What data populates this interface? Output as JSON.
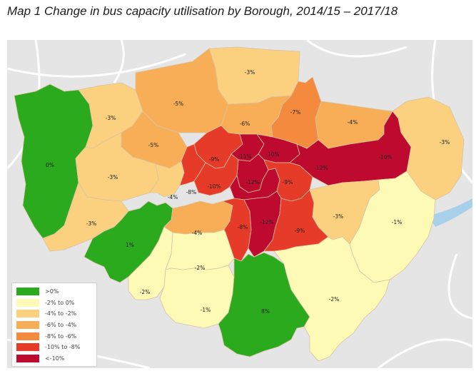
{
  "title": "Map 1 Change in bus capacity utilisation by Borough, 2014/15 – 2017/18",
  "colors": {
    "background": "#e5e5e5",
    "river": "#a9d0ea",
    "roads": "#ffffff"
  },
  "legend": [
    {
      "label": ">0%",
      "color": "#2aaa1c"
    },
    {
      "label": "-2% to  0%",
      "color": "#fdfab6"
    },
    {
      "label": "-4% to -2%",
      "color": "#fbd17f"
    },
    {
      "label": "-6% to -4%",
      "color": "#f7ae57"
    },
    {
      "label": "-8% to -6%",
      "color": "#f48a3e"
    },
    {
      "label": "-10% to -8%",
      "color": "#e63b28"
    },
    {
      "label": "<-10%",
      "color": "#be0a2e"
    }
  ],
  "boroughs": [
    {
      "label": "-3%",
      "color": "#fbd17f"
    },
    {
      "label": "-5%",
      "color": "#f7ae57"
    },
    {
      "label": "-7%",
      "color": "#f48a3e"
    },
    {
      "label": "-4%",
      "color": "#f7ae57"
    },
    {
      "label": "-3%",
      "color": "#fbd17f"
    },
    {
      "label": "-6%",
      "color": "#f7ae57"
    },
    {
      "label": "-3%",
      "color": "#fbd17f"
    },
    {
      "label": "0%",
      "color": "#2aaa1c"
    },
    {
      "label": "-5%",
      "color": "#f7ae57"
    },
    {
      "label": "-9%",
      "color": "#e63b28"
    },
    {
      "label": "-11%",
      "color": "#be0a2e"
    },
    {
      "label": "-10%",
      "color": "#be0a2e"
    },
    {
      "label": "-12%",
      "color": "#be0a2e"
    },
    {
      "label": "-10%",
      "color": "#be0a2e"
    },
    {
      "label": "-3%",
      "color": "#fbd17f"
    },
    {
      "label": "-4%",
      "color": "#fbd17f"
    },
    {
      "label": "-8%",
      "color": "#e63b28"
    },
    {
      "label": "-10%",
      "color": "#e63b28"
    },
    {
      "label": "-12%",
      "color": "#be0a2e"
    },
    {
      "label": "-9%",
      "color": "#e63b28"
    },
    {
      "label": "-3%",
      "color": "#fbd17f"
    },
    {
      "label": "1%",
      "color": "#2aaa1c"
    },
    {
      "label": "-4%",
      "color": "#f7ae57"
    },
    {
      "label": "-8%",
      "color": "#e63b28"
    },
    {
      "label": "-12%",
      "color": "#be0a2e"
    },
    {
      "label": "-9%",
      "color": "#e63b28"
    },
    {
      "label": "-3%",
      "color": "#fbd17f"
    },
    {
      "label": "-1%",
      "color": "#fdfab6"
    },
    {
      "label": "-2%",
      "color": "#fdfab6"
    },
    {
      "label": "-2%",
      "color": "#fdfab6"
    },
    {
      "label": "-1%",
      "color": "#fdfab6"
    },
    {
      "label": "8%",
      "color": "#2aaa1c"
    },
    {
      "label": "-2%",
      "color": "#fdfab6"
    }
  ]
}
